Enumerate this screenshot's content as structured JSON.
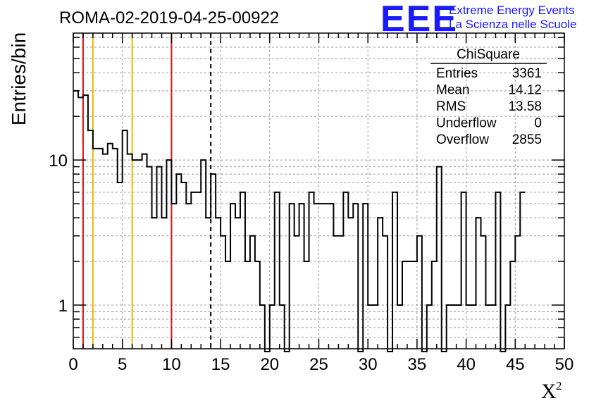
{
  "chart_data": {
    "type": "histogram",
    "title": "ROMA-02-2019-04-25-00922",
    "xlabel": "X",
    "xlabel_superscript": "2",
    "ylabel": "Entries/bin",
    "xlim": [
      0,
      50
    ],
    "ylim": [
      0.5,
      75
    ],
    "yscale": "log",
    "grid": true,
    "bin_width": 0.5,
    "bin_start": 0,
    "x_ticks": [
      "0",
      "5",
      "10",
      "15",
      "20",
      "25",
      "30",
      "35",
      "40",
      "45",
      "50"
    ],
    "y_ticks": [
      {
        "value": 1,
        "label": "1"
      },
      {
        "value": 10,
        "label": "10"
      }
    ],
    "values": [
      30,
      27,
      28,
      16,
      12,
      12,
      11,
      13,
      12,
      7,
      16,
      11,
      10,
      10,
      11,
      9,
      4,
      9,
      4,
      10,
      5,
      8,
      7,
      5,
      6,
      6,
      10,
      4,
      8,
      4,
      3,
      2,
      5,
      4,
      6,
      2,
      3,
      2,
      1,
      0.4,
      1,
      6,
      1,
      0.4,
      5,
      3,
      5,
      2,
      6,
      5,
      5,
      5,
      5,
      3,
      3,
      6,
      4,
      5,
      0.4,
      5,
      1,
      1,
      4,
      3,
      0.4,
      6,
      1,
      2,
      2,
      2,
      3,
      0.4,
      1,
      2,
      9,
      0.4,
      1,
      1,
      1,
      6,
      1,
      1,
      4,
      3,
      1,
      1,
      6,
      0.4,
      1,
      2,
      3,
      6
    ],
    "vertical_lines": [
      {
        "x": 1,
        "color": "#dd1111",
        "style": "solid"
      },
      {
        "x": 2,
        "color": "#f2b600",
        "style": "solid"
      },
      {
        "x": 6,
        "color": "#f2b600",
        "style": "solid"
      },
      {
        "x": 10,
        "color": "#dd1111",
        "style": "solid"
      },
      {
        "x": 14,
        "color": "#000000",
        "style": "dashed"
      }
    ],
    "stats_box": {
      "name": "ChiSquare",
      "rows": [
        {
          "label": "Entries",
          "value": "3361"
        },
        {
          "label": "Mean",
          "value": "14.12"
        },
        {
          "label": "RMS",
          "value": "13.58"
        },
        {
          "label": "Underflow",
          "value": "0"
        },
        {
          "label": "Overflow",
          "value": "2855"
        }
      ]
    }
  },
  "logo": {
    "big": "EEE",
    "line1": "Extreme Energy Events",
    "line2": "La Scienza nelle Scuole",
    "color": "#1a1aff"
  }
}
